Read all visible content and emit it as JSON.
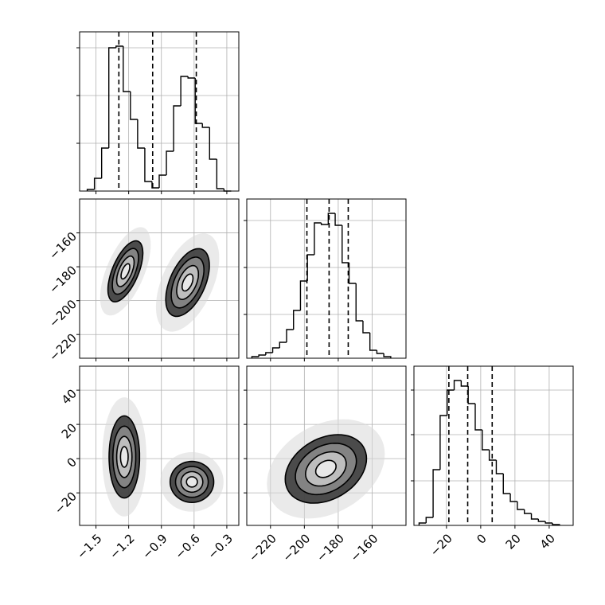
{
  "chart_data": {
    "type": "corner",
    "grid": true,
    "contour_sigmas": [
      0.5,
      1,
      1.5,
      2
    ],
    "params": [
      {
        "lim": [
          -1.65,
          -0.19
        ],
        "ticks": [
          {
            "value": -1.5,
            "label": "−1.5"
          },
          {
            "value": -1.2,
            "label": "−1.2"
          },
          {
            "value": -0.9,
            "label": "−0.9"
          },
          {
            "value": -0.6,
            "label": "−0.6"
          },
          {
            "value": -0.3,
            "label": "−0.3"
          }
        ],
        "quantiles": [
          -1.29,
          -0.98,
          -0.58
        ],
        "bins": [
          -1.58,
          -1.514,
          -1.448,
          -1.382,
          -1.316,
          -1.25,
          -1.184,
          -1.118,
          -1.052,
          -0.986,
          -0.92,
          -0.854,
          -0.788,
          -0.722,
          -0.656,
          -0.59,
          -0.524,
          -0.458,
          -0.392,
          -0.326,
          -0.26
        ],
        "counts": [
          2,
          16,
          54,
          180,
          182,
          125,
          90,
          54,
          12,
          4,
          20,
          50,
          107,
          144,
          142,
          85,
          80,
          40,
          3,
          0
        ],
        "hist_ylim": [
          0,
          200
        ],
        "hist_yticks": [
          60,
          120,
          180
        ]
      },
      {
        "lim": [
          -234,
          -140
        ],
        "ticks": [
          {
            "value": -220,
            "label": "−220"
          },
          {
            "value": -200,
            "label": "−200"
          },
          {
            "value": -180,
            "label": "−180"
          },
          {
            "value": -160,
            "label": "−160"
          }
        ],
        "quantiles": [
          -198.5,
          -185.4,
          -174.1
        ],
        "bins": [
          -231,
          -226.9,
          -222.8,
          -218.7,
          -214.6,
          -210.5,
          -206.4,
          -202.3,
          -198.2,
          -194.1,
          -190,
          -185.9,
          -181.8,
          -177.7,
          -173.6,
          -169.5,
          -165.4,
          -161.3,
          -157.2,
          -153.1,
          -149
        ],
        "counts": [
          2,
          4,
          7,
          13,
          20,
          36,
          60,
          97,
          130,
          170,
          168,
          182,
          167,
          120,
          94,
          47,
          32,
          10,
          6,
          2
        ],
        "hist_ylim": [
          0,
          200
        ],
        "hist_yticks": [
          55,
          114,
          173
        ],
        "pairs": [
          {
            "clusters": [
              {
                "center": [
                  -1.23,
                  -182.7
                ],
                "sigma": [
                  0.08,
                  9
                ],
                "rho": 0.6
              },
              {
                "center": [
                  -0.66,
                  -189.3
                ],
                "sigma": [
                  0.1,
                  10
                ],
                "rho": 0.5
              }
            ]
          }
        ]
      },
      {
        "lim": [
          -39,
          54
        ],
        "ticks": [
          {
            "value": -20,
            "label": "−20"
          },
          0,
          20,
          40
        ],
        "quantiles": [
          -18.6,
          -7.6,
          6.7
        ],
        "bins": [
          -36,
          -31.9,
          -27.8,
          -23.7,
          -19.6,
          -15.5,
          -11.4,
          -7.3,
          -3.2,
          0.9,
          5,
          9.1,
          13.2,
          17.3,
          21.4,
          25.5,
          29.6,
          33.7,
          37.8,
          41.9,
          46
        ],
        "counts": [
          3,
          10,
          70,
          138,
          170,
          182,
          175,
          153,
          120,
          95,
          82,
          65,
          40,
          30,
          20,
          15,
          8,
          5,
          3,
          1
        ],
        "hist_ylim": [
          0,
          200
        ],
        "hist_yticks": [
          56,
          114,
          170
        ],
        "pairs": [
          {
            "clusters": [
              {
                "center": [
                  -1.24,
                  1
                ],
                "sigma": [
                  0.07,
                  12
                ],
                "rho": 0.0
              },
              {
                "center": [
                  -0.62,
                  -13.6
                ],
                "sigma": [
                  0.1,
                  6
                ],
                "rho": 0.0
              }
            ]
          },
          {
            "clusters": [
              {
                "center": [
                  -187.3,
                  -6
                ],
                "sigma": [
                  12,
                  10
                ],
                "rho": 0.3
              }
            ]
          }
        ]
      }
    ]
  }
}
